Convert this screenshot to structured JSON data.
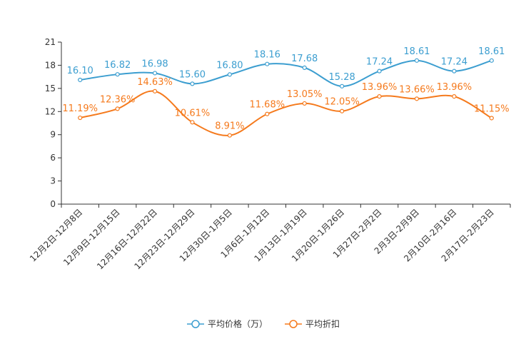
{
  "chart_data": {
    "type": "line",
    "title": "",
    "xlabel": "",
    "ylabel": "",
    "ylim": [
      0,
      21
    ],
    "yticks": [
      0,
      3,
      6,
      9,
      12,
      15,
      18,
      21
    ],
    "categories": [
      "12月2日-12月8日",
      "12月9日-12月15日",
      "12月16日-12月22日",
      "12月23日-12月29日",
      "12月30日-1月5日",
      "1月6日-1月12日",
      "1月13日-1月19日",
      "1月20日-1月26日",
      "1月27日-2月2日",
      "2月3日-2月9日",
      "2月10日-2月16日",
      "2月17日-2月23日"
    ],
    "series": [
      {
        "name": "平均价格（万）",
        "color": "#3c9ed0",
        "values": [
          16.1,
          16.82,
          16.98,
          15.6,
          16.8,
          18.16,
          17.68,
          15.28,
          17.24,
          18.61,
          17.24,
          18.61
        ],
        "labels": [
          "16.10",
          "16.82",
          "16.98",
          "15.60",
          "16.80",
          "18.16",
          "17.68",
          "15.28",
          "17.24",
          "18.61",
          "17.24",
          "18.61"
        ]
      },
      {
        "name": "平均折扣",
        "color": "#f57a1d",
        "values": [
          11.19,
          12.36,
          14.63,
          10.61,
          8.91,
          11.68,
          13.05,
          12.05,
          13.96,
          13.66,
          13.96,
          11.15
        ],
        "labels": [
          "11.19%",
          "12.36%",
          "14.63%",
          "10.61%",
          "8.91%",
          "11.68%",
          "13.05%",
          "12.05%",
          "13.96%",
          "13.66%",
          "13.96%",
          "11.15%"
        ]
      }
    ],
    "legend": {
      "position": "bottom-center"
    },
    "grid": false
  }
}
